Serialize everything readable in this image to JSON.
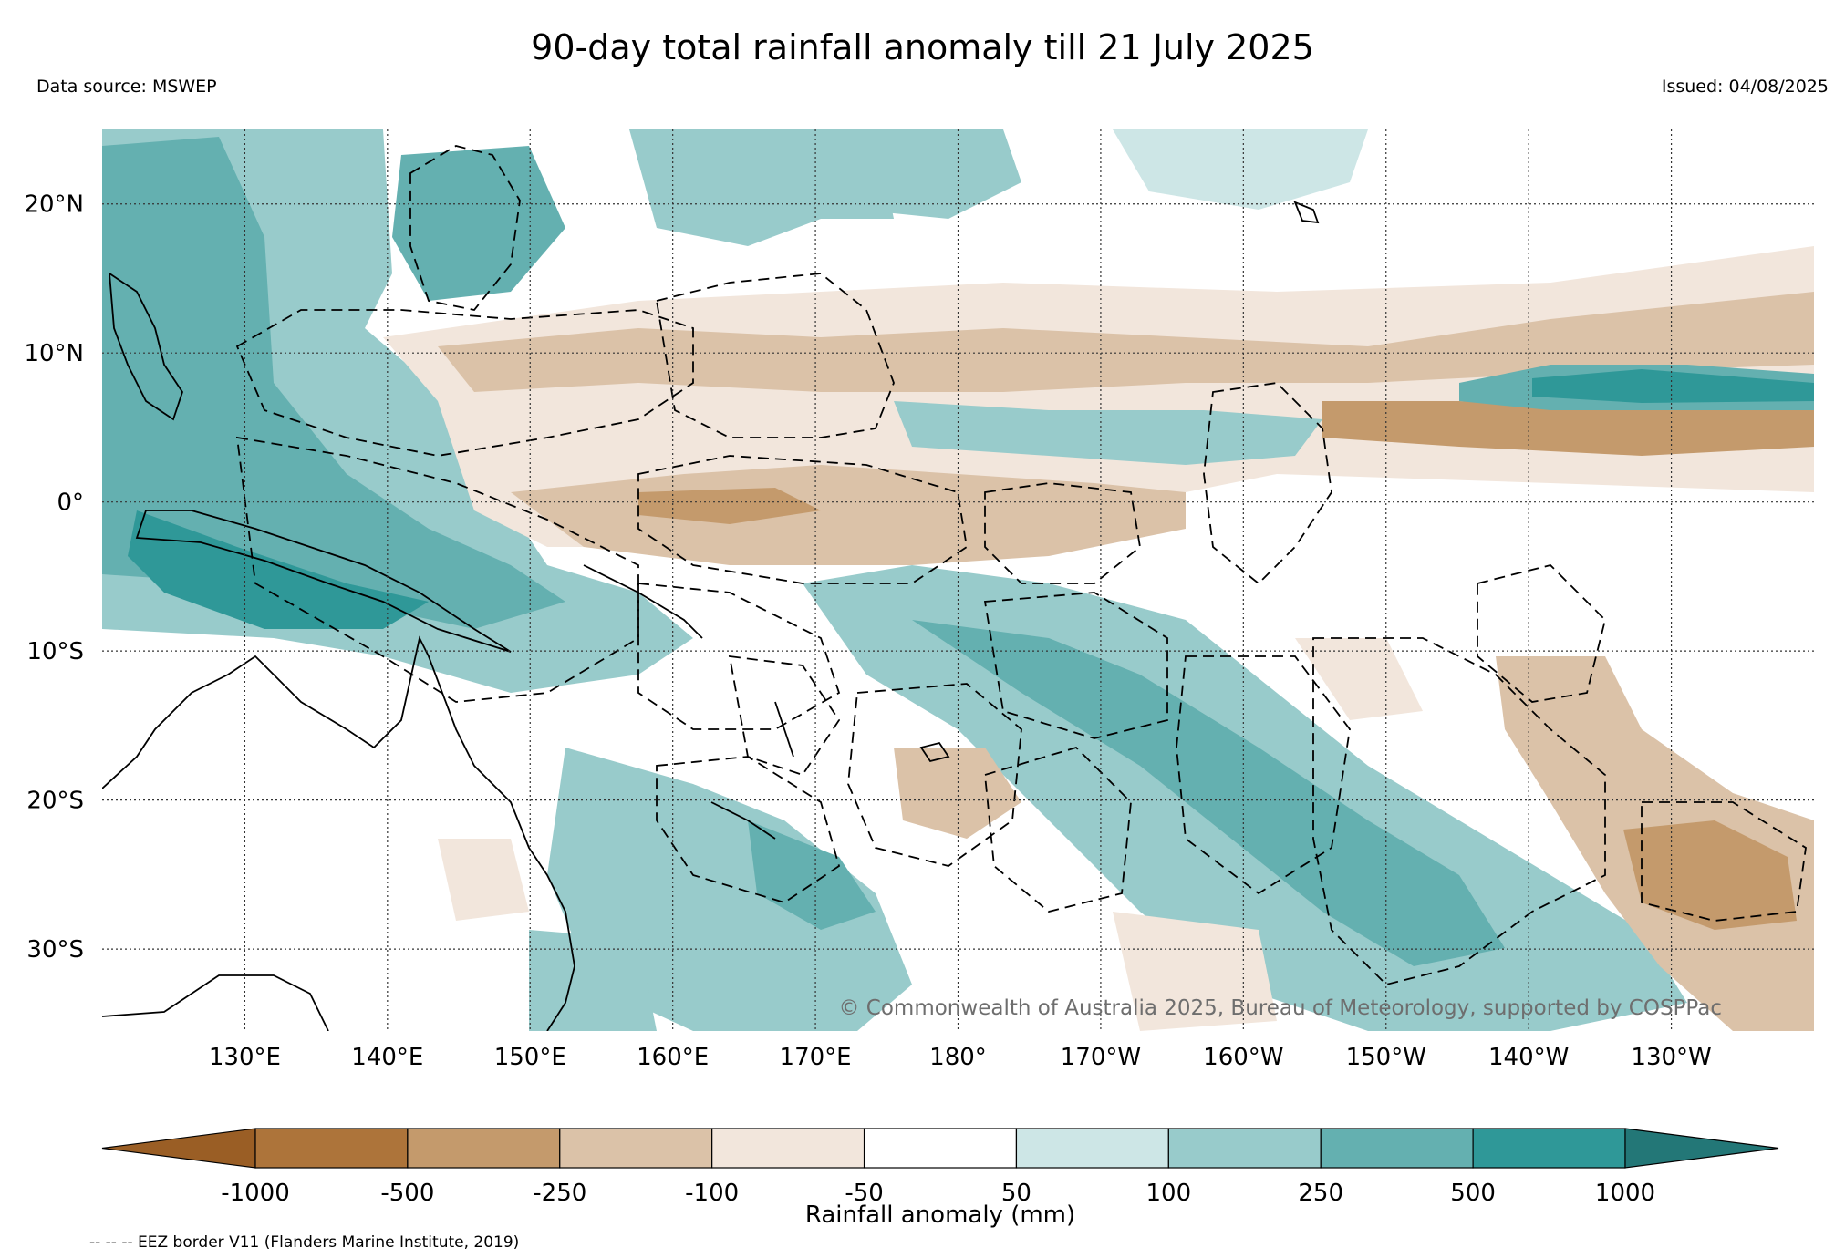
{
  "title": "90-day total rainfall anomaly till 21 July 2025",
  "data_source": "Data source: MSWEP",
  "issued": "Issued: 04/08/2025",
  "copyright": "© Commonwealth of Australia 2025, Bureau of Meteorology, supported by COSPPac",
  "footnote": "-- -- -- EEZ border V11 (Flanders Marine Institute, 2019)",
  "map": {
    "lon_range": [
      120,
      240
    ],
    "lat_range": [
      -35.5,
      25
    ],
    "lat_ticks": [
      {
        "value": 20,
        "label": "20°N"
      },
      {
        "value": 10,
        "label": "10°N"
      },
      {
        "value": 0,
        "label": "0°"
      },
      {
        "value": -10,
        "label": "10°S"
      },
      {
        "value": -20,
        "label": "20°S"
      },
      {
        "value": -30,
        "label": "30°S"
      }
    ],
    "lon_ticks": [
      {
        "value": 130,
        "label": "130°E"
      },
      {
        "value": 140,
        "label": "140°E"
      },
      {
        "value": 150,
        "label": "150°E"
      },
      {
        "value": 160,
        "label": "160°E"
      },
      {
        "value": 170,
        "label": "170°E"
      },
      {
        "value": 180,
        "label": "180°"
      },
      {
        "value": 190,
        "label": "170°W"
      },
      {
        "value": 200,
        "label": "160°W"
      },
      {
        "value": 210,
        "label": "150°W"
      },
      {
        "value": 220,
        "label": "140°W"
      },
      {
        "value": 230,
        "label": "130°W"
      }
    ]
  },
  "colorbar": {
    "label": "Rainfall anomaly (mm)",
    "ticks": [
      "-1000",
      "-500",
      "-250",
      "-100",
      "-50",
      "50",
      "100",
      "250",
      "500",
      "1000"
    ],
    "colors": [
      "#9a5e25",
      "#ad743a",
      "#c49a6c",
      "#dbc2a8",
      "#f2e6dc",
      "#ffffff",
      "#cde6e6",
      "#98cbcb",
      "#64b0b0",
      "#2f9898",
      "#237777"
    ]
  },
  "colors": {
    "dry_strong": "#c49a6c",
    "dry": "#dbc2a8",
    "dry_light": "#f2e6dc",
    "wet_light": "#cde6e6",
    "wet": "#98cbcb",
    "wet_strong": "#64b0b0",
    "wet_very": "#2f9898"
  }
}
